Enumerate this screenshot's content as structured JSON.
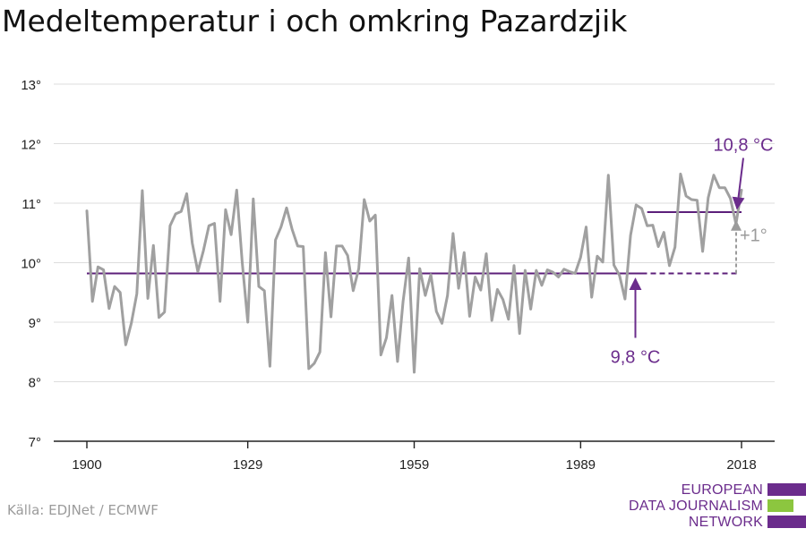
{
  "title": "Medeltemperatur i och omkring Pazardzjik",
  "source": "Källa: EDJNet / ECMWF",
  "logo": {
    "lines": [
      "EUROPEAN",
      "DATA JOURNALISM",
      "NETWORK"
    ],
    "colors": {
      "purple": "#6b2c8c",
      "green": "#8cc63f"
    }
  },
  "colors": {
    "series": "#a0a0a0",
    "reference": "#5c1f7a",
    "annotation_purple": "#6b2c8c",
    "annotation_gray": "#9b9b9b",
    "grid": "#dddddd",
    "axis": "#222222"
  },
  "chart_data": {
    "type": "line",
    "title": "Medeltemperatur i och omkring Pazardzjik",
    "xlabel": "",
    "ylabel": "",
    "x_ticks": [
      1900,
      1929,
      1959,
      1989,
      2018
    ],
    "y_ticks": [
      7,
      8,
      9,
      10,
      11,
      12,
      13
    ],
    "y_tick_suffix": "°",
    "xlim": [
      1900,
      2018
    ],
    "ylim": [
      7,
      13
    ],
    "grid": "horizontal",
    "series": [
      {
        "x": [
          1900,
          1901,
          1902,
          1903,
          1904,
          1905,
          1906,
          1907,
          1908,
          1909,
          1910,
          1911,
          1912,
          1913,
          1914,
          1915,
          1916,
          1917,
          1918,
          1919,
          1920,
          1921,
          1922,
          1923,
          1924,
          1925,
          1926,
          1927,
          1928,
          1929,
          1930,
          1931,
          1932,
          1933,
          1934,
          1935,
          1936,
          1937,
          1938,
          1939,
          1940,
          1941,
          1942,
          1943,
          1944,
          1945,
          1946,
          1947,
          1948,
          1949,
          1950,
          1951,
          1952,
          1953,
          1954,
          1955,
          1956,
          1957,
          1958,
          1959,
          1960,
          1961,
          1962,
          1963,
          1964,
          1965,
          1966,
          1967,
          1968,
          1969,
          1970,
          1971,
          1972,
          1973,
          1974,
          1975,
          1976,
          1977,
          1978,
          1979,
          1980,
          1981,
          1982,
          1983,
          1984,
          1985,
          1986,
          1987,
          1988,
          1989,
          1990,
          1991,
          1992,
          1993,
          1994,
          1995,
          1996,
          1997,
          1998,
          1999,
          2000,
          2001,
          2002,
          2003,
          2004,
          2005,
          2006,
          2007,
          2008,
          2009,
          2010,
          2011,
          2012,
          2013,
          2014,
          2015,
          2016,
          2017,
          2018
        ],
        "values": [
          10.87,
          9.35,
          9.93,
          9.88,
          9.23,
          9.6,
          9.5,
          8.62,
          8.98,
          9.48,
          11.21,
          9.4,
          10.29,
          9.08,
          9.17,
          10.62,
          10.82,
          10.86,
          11.16,
          10.33,
          9.85,
          10.2,
          10.62,
          10.66,
          9.35,
          10.89,
          10.47,
          11.22,
          10.0,
          9.0,
          11.07,
          9.6,
          9.53,
          8.26,
          10.38,
          10.6,
          10.92,
          10.56,
          10.28,
          10.27,
          8.22,
          8.31,
          8.5,
          10.17,
          9.09,
          10.28,
          10.28,
          10.12,
          9.53,
          9.9,
          11.06,
          10.7,
          10.8,
          8.45,
          8.74,
          9.45,
          8.34,
          9.35,
          10.08,
          8.16,
          9.9,
          9.45,
          9.8,
          9.18,
          8.98,
          9.45,
          10.49,
          9.57,
          10.17,
          9.1,
          9.76,
          9.54,
          10.15,
          9.03,
          9.55,
          9.38,
          9.05,
          9.95,
          8.81,
          9.87,
          9.22,
          9.87,
          9.62,
          9.88,
          9.84,
          9.76,
          9.89,
          9.85,
          9.82,
          10.09,
          10.6,
          9.42,
          10.11,
          10.01,
          11.47,
          9.96,
          9.79,
          9.39,
          10.46,
          10.97,
          10.91,
          10.62,
          10.63,
          10.27,
          10.51,
          9.95,
          10.26,
          11.49,
          11.12,
          11.06,
          11.05,
          10.19,
          11.09,
          11.47,
          11.26,
          11.26,
          11.08,
          10.65,
          11.22
        ]
      }
    ],
    "reference_lines": [
      {
        "label": "9,8 °C",
        "value": 9.82,
        "x_start": 1900,
        "x_end": 2000
      },
      {
        "label": "10,8 °C",
        "value": 10.85,
        "x_start": 2001,
        "x_end": 2018
      }
    ],
    "dashed_extension": {
      "value": 9.82,
      "x_start": 2000,
      "x_end": 2018
    },
    "difference_label": "+1°"
  }
}
